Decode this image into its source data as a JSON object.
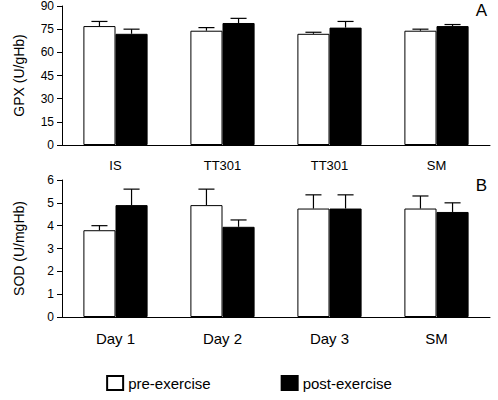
{
  "chart_data": [
    {
      "type": "bar",
      "title": "A",
      "ylabel": "GPX (U/gHb)",
      "categories": [
        "IS",
        "TT301",
        "TT301",
        "SM"
      ],
      "ylim": [
        0,
        90
      ],
      "yticks": [
        0,
        15,
        30,
        45,
        60,
        75,
        90
      ],
      "series": [
        {
          "name": "pre-exercise",
          "color": "#ffffff",
          "values": [
            77,
            74,
            72,
            74
          ],
          "errors": [
            3,
            2,
            1,
            1
          ]
        },
        {
          "name": "post-exercise",
          "color": "#000000",
          "values": [
            72,
            79,
            76,
            77
          ],
          "errors": [
            3,
            3,
            4,
            1
          ]
        }
      ]
    },
    {
      "type": "bar",
      "title": "B",
      "ylabel": "SOD (U/mgHb)",
      "categories": [
        "Day 1",
        "Day 2",
        "Day 3",
        "SM"
      ],
      "ylim": [
        0,
        6
      ],
      "yticks": [
        0,
        1,
        2,
        3,
        4,
        5,
        6
      ],
      "legend": "bottom",
      "series": [
        {
          "name": "pre-exercise",
          "color": "#ffffff",
          "values": [
            3.8,
            4.9,
            4.75,
            4.75
          ],
          "errors": [
            0.2,
            0.7,
            0.6,
            0.55
          ]
        },
        {
          "name": "post-exercise",
          "color": "#000000",
          "values": [
            4.9,
            3.95,
            4.75,
            4.6
          ],
          "errors": [
            0.7,
            0.3,
            0.6,
            0.4
          ]
        }
      ]
    }
  ]
}
